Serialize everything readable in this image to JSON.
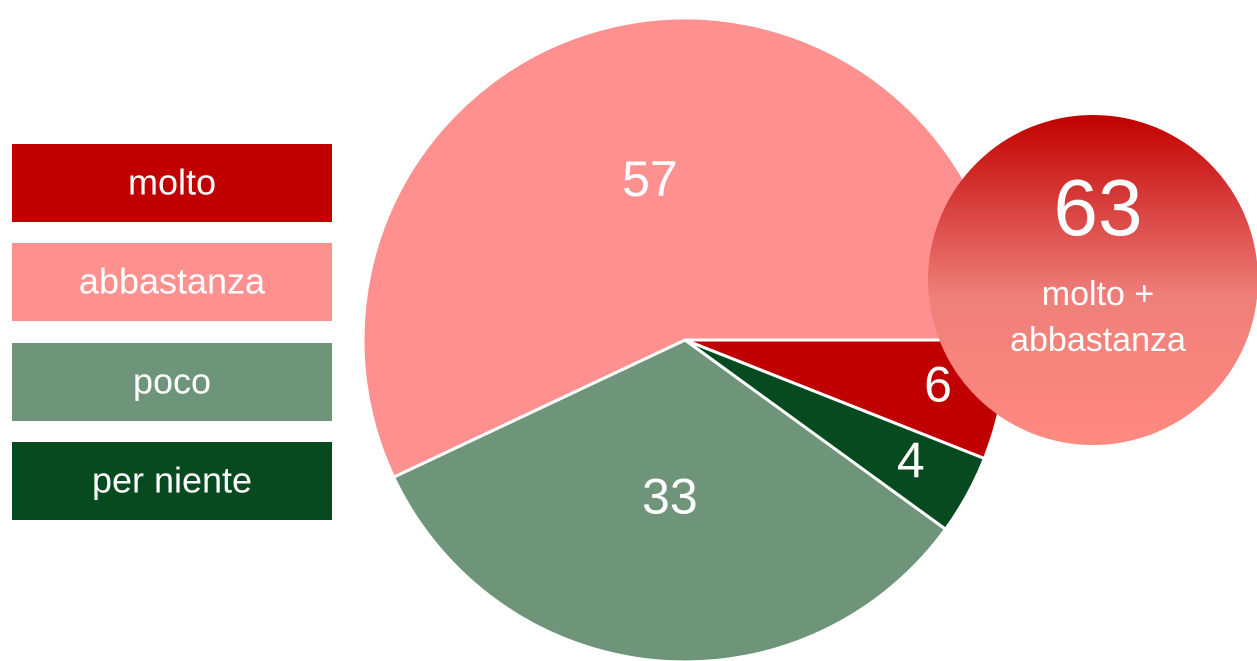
{
  "chart_data": {
    "type": "pie",
    "categories": [
      "molto",
      "abbastanza",
      "poco",
      "per niente"
    ],
    "values": [
      6,
      57,
      33,
      4
    ],
    "colors": [
      "#c00000",
      "#ff9090",
      "#6e957a",
      "#084a20"
    ],
    "slice_order": [
      "molto",
      "per niente",
      "poco",
      "abbastanza"
    ],
    "annotation": {
      "value": 63,
      "lines": [
        "molto +",
        "abbastanza"
      ]
    }
  }
}
